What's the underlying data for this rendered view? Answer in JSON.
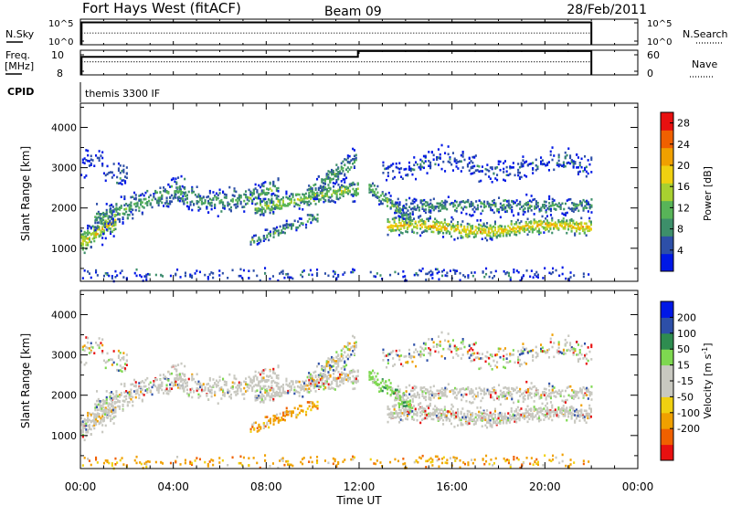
{
  "header": {
    "station": "Fort Hays West (fitACF)",
    "beam": "Beam 09",
    "date": "28/Feb/2011"
  },
  "labels": {
    "nsky": "N.Sky",
    "nsearch": "N.Search",
    "freq_line1": "Freq.",
    "freq_line2": "[MHz]",
    "nave": "Nave",
    "cpid": "CPID",
    "cpid_value": "themis 3300 IF",
    "time_axis": "Time UT"
  },
  "colors": {
    "power": [
      "#0018e6",
      "#2d4fa8",
      "#3d8f6a",
      "#58b458",
      "#a8d030",
      "#f0d010",
      "#f0a000",
      "#f06000",
      "#e81010"
    ],
    "velocity": [
      "#e81010",
      "#f06000",
      "#f0a000",
      "#f0d010",
      "#c8c8c0",
      "#c8c8c0",
      "#7ed850",
      "#2e8c50",
      "#2d4fa8",
      "#0018e6"
    ]
  },
  "chart_data": [
    {
      "type": "line",
      "name": "noise",
      "left_ticks": [
        "10^5",
        "10^0"
      ],
      "right_ticks": [
        "10^5",
        "10^0"
      ],
      "series": [
        {
          "name": "N.Sky",
          "style": "solid",
          "x": [
            0.05,
            0.05,
            22.0,
            22.0
          ],
          "y": [
            0,
            5,
            5,
            0
          ]
        },
        {
          "name": "N.Search",
          "style": "dotted",
          "x": [
            0.05,
            22.0
          ],
          "y": [
            2.6,
            2.6
          ]
        }
      ],
      "xlim": [
        0,
        24
      ]
    },
    {
      "type": "line",
      "name": "frequency-nave",
      "left_ticks": [
        10,
        8
      ],
      "right_ticks": [
        60,
        0
      ],
      "ylim_left": [
        8,
        11
      ],
      "ylim_right": [
        0,
        60
      ],
      "series": [
        {
          "name": "Freq",
          "style": "solid",
          "x": [
            0.05,
            0.05,
            11.95,
            11.95,
            22.0,
            22.0
          ],
          "y": [
            8,
            10.2,
            10.2,
            10.9,
            10.9,
            8
          ]
        },
        {
          "name": "Nave",
          "style": "dotted",
          "x": [
            0.05,
            22.0
          ],
          "y": [
            9.6,
            9.6
          ]
        }
      ],
      "xlim": [
        0,
        24
      ]
    },
    {
      "type": "heatmap",
      "name": "power",
      "ylabel": "Slant Range [km]",
      "yticks": [
        1000,
        2000,
        3000,
        4000
      ],
      "ylim": [
        180,
        4600
      ],
      "colorbar_label": "Power [dB]",
      "colorbar_ticks": [
        4,
        8,
        12,
        16,
        20,
        24,
        28
      ],
      "clim": [
        0,
        30
      ],
      "xlim": [
        0,
        24
      ]
    },
    {
      "type": "heatmap",
      "name": "velocity",
      "ylabel": "Slant Range [km]",
      "yticks": [
        1000,
        2000,
        3000,
        4000
      ],
      "ylim": [
        180,
        4600
      ],
      "colorbar_label": "Velocity [m s",
      "colorbar_label_exp": "-1",
      "colorbar_label_end": "]",
      "colorbar_ticks": [
        200,
        100,
        50,
        15,
        -15,
        -50,
        -100,
        -200
      ],
      "xlim": [
        0,
        24
      ]
    }
  ],
  "xaxis": {
    "ticks": [
      "00:00",
      "04:00",
      "08:00",
      "12:00",
      "16:00",
      "20:00",
      "00:00"
    ],
    "tick_hours": [
      0,
      4,
      8,
      12,
      16,
      20,
      24
    ]
  }
}
